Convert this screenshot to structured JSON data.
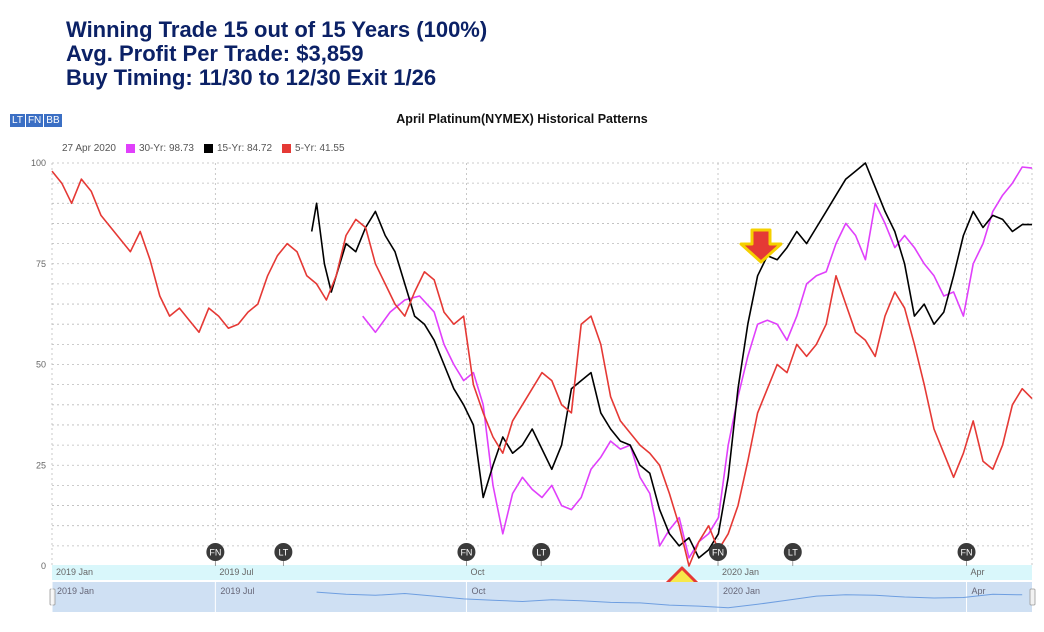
{
  "headlines": [
    "Winning Trade 15 out of 15 Years (100%)",
    "Avg. Profit Per Trade: $3,859",
    "Buy Timing: 11/30 to 12/30 Exit 1/26"
  ],
  "toolbar": {
    "buttons": [
      "LT",
      "FN",
      "BB"
    ]
  },
  "legend": {
    "date": "27 Apr 2020",
    "items": [
      {
        "label": "30-Yr: 98.73",
        "color": "#e040fb"
      },
      {
        "label": "15-Yr: 84.72",
        "color": "#000000"
      },
      {
        "label": "5-Yr: 41.55",
        "color": "#e53935"
      }
    ]
  },
  "chart_data": {
    "type": "line",
    "title": "April Platinum(NYMEX) Historical Patterns",
    "ylim": [
      0,
      100
    ],
    "yticks": [
      0,
      25,
      50,
      75,
      100
    ],
    "grid": true,
    "legend_position": "top-left",
    "x_axis_labels": [
      {
        "label": "2019 Jan",
        "pos": 0.0
      },
      {
        "label": "2019 Jul",
        "pos": 0.1667
      },
      {
        "label": "Oct",
        "pos": 0.4229
      },
      {
        "label": "2020 Jan",
        "pos": 0.6796
      },
      {
        "label": "Apr",
        "pos": 0.9332
      }
    ],
    "navigator_labels": [
      {
        "label": "2019 Jan",
        "pos": 0.0
      },
      {
        "label": "2019 Jul",
        "pos": 0.1667
      },
      {
        "label": "Oct",
        "pos": 0.4229
      },
      {
        "label": "2020 Jan",
        "pos": 0.6796
      },
      {
        "label": "Apr",
        "pos": 0.9332
      }
    ],
    "markers": [
      {
        "label": "FN",
        "pos": 0.1667
      },
      {
        "label": "LT",
        "pos": 0.2361
      },
      {
        "label": "FN",
        "pos": 0.4229
      },
      {
        "label": "LT",
        "pos": 0.4992
      },
      {
        "label": "FN",
        "pos": 0.6796
      },
      {
        "label": "LT",
        "pos": 0.7559
      },
      {
        "label": "FN",
        "pos": 0.9332
      }
    ],
    "series": [
      {
        "name": "30-Yr: 98.73",
        "color": "#e040fb",
        "x": [
          0.317,
          0.33,
          0.345,
          0.36,
          0.375,
          0.39,
          0.4,
          0.41,
          0.42,
          0.43,
          0.44,
          0.445,
          0.45,
          0.46,
          0.47,
          0.48,
          0.49,
          0.5,
          0.51,
          0.52,
          0.53,
          0.54,
          0.55,
          0.56,
          0.57,
          0.58,
          0.59,
          0.6,
          0.61,
          0.615,
          0.62,
          0.63,
          0.64,
          0.65,
          0.66,
          0.67,
          0.68,
          0.69,
          0.7,
          0.71,
          0.72,
          0.73,
          0.74,
          0.75,
          0.76,
          0.77,
          0.78,
          0.79,
          0.8,
          0.81,
          0.82,
          0.83,
          0.84,
          0.85,
          0.86,
          0.87,
          0.88,
          0.89,
          0.9,
          0.91,
          0.92,
          0.93,
          0.94,
          0.95,
          0.96,
          0.97,
          0.98,
          0.99,
          1.0
        ],
        "y": [
          62,
          58,
          63,
          66,
          67,
          63,
          55,
          50,
          46,
          48,
          40,
          30,
          20,
          8,
          18,
          22,
          19,
          17,
          20,
          15,
          14,
          17,
          24,
          27,
          31,
          29,
          30,
          22,
          18,
          12,
          5,
          9,
          12,
          2,
          6,
          8,
          12,
          30,
          42,
          52,
          60,
          61,
          60,
          56,
          62,
          70,
          72,
          73,
          80,
          85,
          82,
          76,
          90,
          85,
          79,
          82,
          79,
          75,
          72,
          67,
          68,
          62,
          75,
          80,
          88,
          92,
          95,
          99,
          98.73
        ]
      },
      {
        "name": "15-Yr: 84.72",
        "color": "#000000",
        "x": [
          0.265,
          0.27,
          0.278,
          0.285,
          0.29,
          0.3,
          0.31,
          0.32,
          0.33,
          0.34,
          0.35,
          0.36,
          0.37,
          0.38,
          0.39,
          0.4,
          0.41,
          0.42,
          0.43,
          0.44,
          0.45,
          0.46,
          0.47,
          0.48,
          0.49,
          0.5,
          0.51,
          0.52,
          0.53,
          0.54,
          0.55,
          0.56,
          0.57,
          0.58,
          0.59,
          0.6,
          0.61,
          0.62,
          0.63,
          0.64,
          0.65,
          0.66,
          0.67,
          0.68,
          0.69,
          0.7,
          0.71,
          0.72,
          0.73,
          0.74,
          0.75,
          0.76,
          0.77,
          0.78,
          0.79,
          0.8,
          0.81,
          0.82,
          0.83,
          0.84,
          0.85,
          0.86,
          0.87,
          0.88,
          0.89,
          0.9,
          0.91,
          0.92,
          0.93,
          0.94,
          0.95,
          0.96,
          0.97,
          0.98,
          0.99,
          1.0
        ],
        "y": [
          83,
          90,
          75,
          68,
          72,
          80,
          78,
          84,
          88,
          82,
          78,
          70,
          62,
          60,
          56,
          50,
          44,
          40,
          35,
          17,
          25,
          32,
          28,
          30,
          34,
          29,
          24,
          30,
          44,
          46,
          48,
          38,
          34,
          31,
          30,
          25,
          23,
          14,
          8,
          5,
          7,
          2,
          4,
          8,
          22,
          44,
          60,
          72,
          77,
          76,
          79,
          83,
          80,
          84,
          88,
          92,
          96,
          98,
          100,
          94,
          88,
          83,
          75,
          62,
          65,
          60,
          63,
          72,
          82,
          88,
          84,
          87,
          86,
          83,
          84.72,
          84.72
        ]
      },
      {
        "name": "5-Yr: 41.55",
        "color": "#e53935",
        "x": [
          0.0,
          0.01,
          0.02,
          0.03,
          0.04,
          0.05,
          0.06,
          0.07,
          0.08,
          0.09,
          0.1,
          0.11,
          0.12,
          0.13,
          0.14,
          0.15,
          0.16,
          0.17,
          0.18,
          0.19,
          0.2,
          0.21,
          0.22,
          0.23,
          0.24,
          0.25,
          0.26,
          0.27,
          0.28,
          0.29,
          0.3,
          0.31,
          0.32,
          0.33,
          0.34,
          0.35,
          0.36,
          0.37,
          0.38,
          0.39,
          0.4,
          0.41,
          0.42,
          0.43,
          0.44,
          0.45,
          0.46,
          0.47,
          0.48,
          0.49,
          0.5,
          0.51,
          0.52,
          0.53,
          0.54,
          0.55,
          0.56,
          0.57,
          0.58,
          0.59,
          0.6,
          0.61,
          0.62,
          0.63,
          0.64,
          0.65,
          0.66,
          0.67,
          0.68,
          0.69,
          0.7,
          0.71,
          0.72,
          0.73,
          0.74,
          0.75,
          0.76,
          0.77,
          0.78,
          0.79,
          0.8,
          0.81,
          0.82,
          0.83,
          0.84,
          0.85,
          0.86,
          0.87,
          0.88,
          0.89,
          0.9,
          0.91,
          0.92,
          0.93,
          0.94,
          0.95,
          0.96,
          0.97,
          0.98,
          0.99,
          1.0
        ],
        "y": [
          98,
          95,
          90,
          96,
          93,
          87,
          84,
          81,
          78,
          83,
          76,
          67,
          62,
          64,
          61,
          58,
          64,
          62,
          59,
          60,
          63,
          65,
          72,
          77,
          80,
          78,
          72,
          70,
          66,
          72,
          82,
          86,
          84,
          75,
          70,
          65,
          62,
          68,
          73,
          71,
          63,
          60,
          62,
          45,
          38,
          32,
          28,
          36,
          40,
          44,
          48,
          46,
          40,
          38,
          60,
          62,
          55,
          42,
          36,
          33,
          30,
          28,
          25,
          18,
          10,
          0,
          6,
          10,
          4,
          8,
          15,
          26,
          38,
          44,
          50,
          48,
          55,
          52,
          55,
          60,
          72,
          65,
          58,
          56,
          52,
          62,
          68,
          64,
          55,
          45,
          34,
          28,
          22,
          28,
          36,
          26,
          24,
          30,
          40,
          44,
          41.55
        ]
      }
    ],
    "navigator_series": {
      "x": [
        0.27,
        0.3,
        0.33,
        0.36,
        0.39,
        0.42,
        0.45,
        0.48,
        0.51,
        0.54,
        0.57,
        0.6,
        0.63,
        0.66,
        0.69,
        0.72,
        0.75,
        0.78,
        0.81,
        0.84,
        0.87,
        0.9,
        0.93,
        0.96,
        0.99
      ],
      "y": [
        70,
        62,
        58,
        65,
        55,
        45,
        40,
        35,
        42,
        38,
        32,
        30,
        22,
        18,
        12,
        25,
        40,
        55,
        60,
        58,
        52,
        48,
        50,
        62,
        60
      ]
    }
  }
}
